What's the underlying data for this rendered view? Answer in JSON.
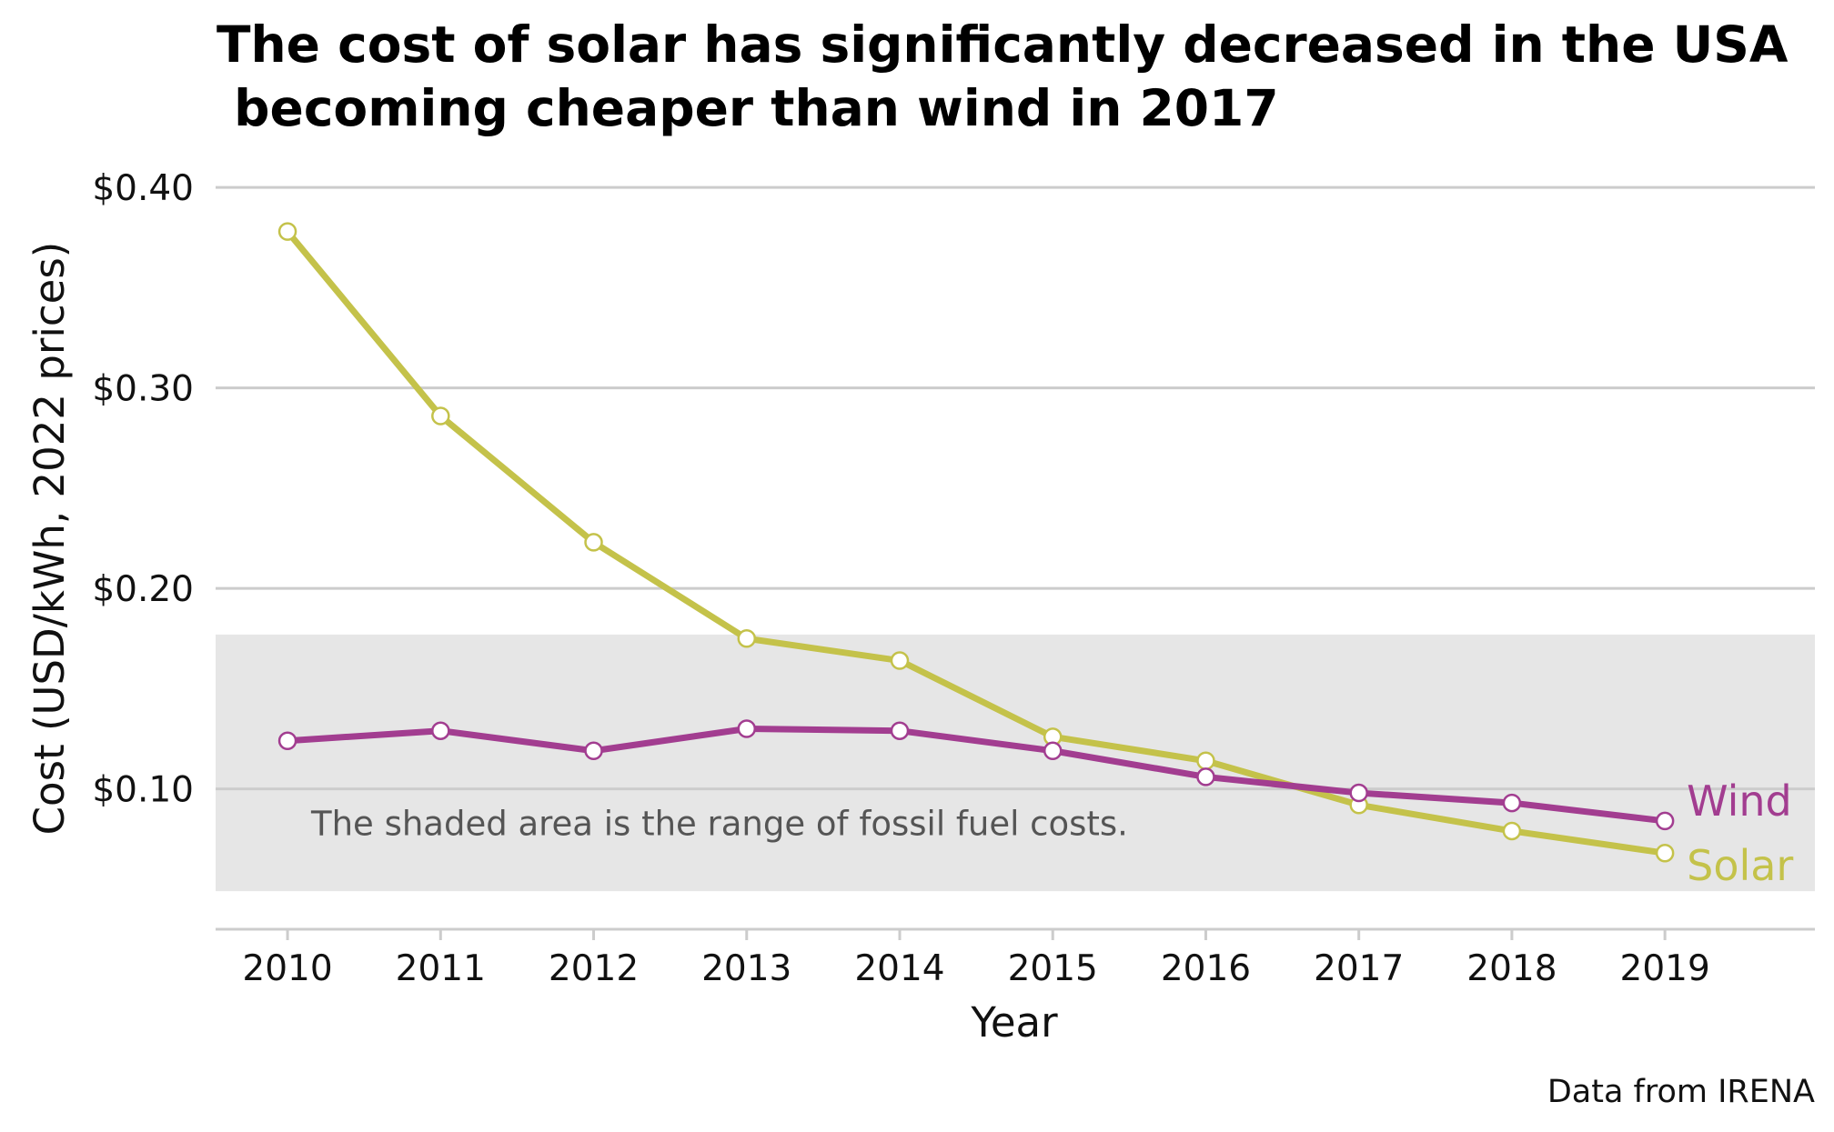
{
  "chart_data": {
    "type": "line",
    "title_line1": "The cost of solar has significantly decreased in the USA",
    "title_line2": " becoming cheaper than wind in 2017",
    "xlabel": "Year",
    "ylabel": "Cost (USD/kWh, 2022 prices)",
    "caption": "Data from IRENA",
    "annotation": "The shaded area is the range of fossil fuel costs.",
    "x": [
      2010,
      2011,
      2012,
      2013,
      2014,
      2015,
      2016,
      2017,
      2018,
      2019
    ],
    "x_tick_labels": [
      "2010",
      "2011",
      "2012",
      "2013",
      "2014",
      "2015",
      "2016",
      "2017",
      "2018",
      "2019"
    ],
    "y_ticks": [
      0.1,
      0.2,
      0.3,
      0.4
    ],
    "y_tick_labels": [
      "$0.10",
      "$0.20",
      "$0.30",
      "$0.40"
    ],
    "ylim": [
      0.03,
      0.43
    ],
    "xlim": [
      2009.53,
      2019.98
    ],
    "shaded_range": {
      "y_min": 0.049,
      "y_max": 0.177,
      "color": "#e6e6e6"
    },
    "grid": "horizontal",
    "legend": "direct labels at line ends",
    "series": [
      {
        "name": "Solar",
        "color": "#c4c24a",
        "values": [
          0.378,
          0.286,
          0.223,
          0.175,
          0.164,
          0.126,
          0.114,
          0.092,
          0.079,
          0.068
        ]
      },
      {
        "name": "Wind",
        "color": "#a23d90",
        "values": [
          0.124,
          0.129,
          0.119,
          0.13,
          0.129,
          0.119,
          0.106,
          0.098,
          0.093,
          0.084
        ]
      }
    ]
  }
}
